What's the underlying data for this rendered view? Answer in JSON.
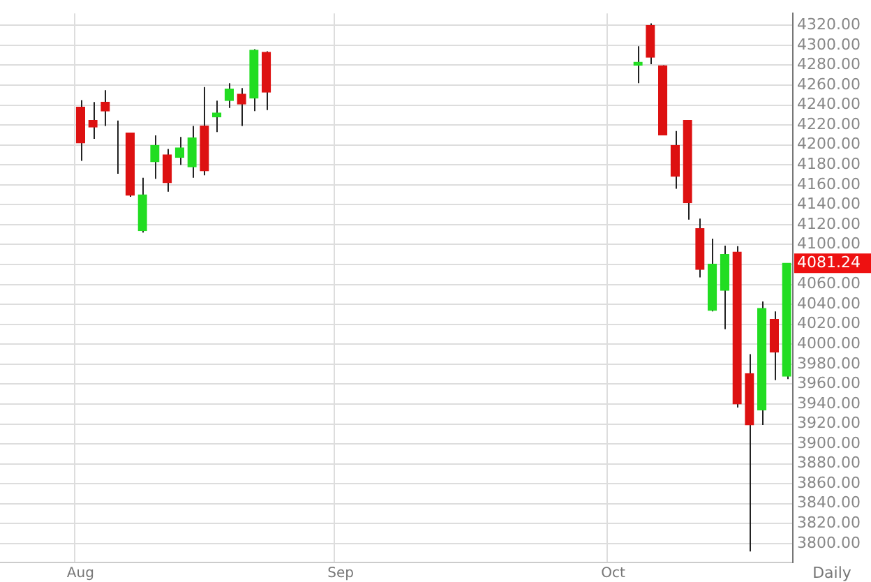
{
  "chart_data": {
    "type": "candlestick",
    "categories": [
      null,
      null,
      null,
      null,
      null,
      null,
      "Aug",
      null,
      null,
      null,
      null,
      null,
      null,
      null,
      null,
      null,
      null,
      null,
      null,
      null,
      null,
      null,
      null,
      null,
      null,
      null,
      null,
      "Sep",
      null,
      null,
      null,
      null,
      null,
      null,
      null,
      null,
      null,
      null,
      null,
      null,
      null,
      null,
      null,
      null,
      null,
      null,
      null,
      null,
      null,
      "Oct",
      null,
      null,
      null,
      null,
      null,
      null,
      null,
      null,
      null,
      null,
      null,
      null,
      null,
      null
    ],
    "ohlc": [
      null,
      null,
      null,
      null,
      null,
      null,
      [
        4238,
        4245,
        4184,
        4202
      ],
      [
        4224.5,
        4243,
        4206,
        4218
      ],
      [
        4243,
        4255,
        4219,
        4234
      ],
      [
        4208,
        4224.5,
        4171,
        4208
      ],
      [
        4212,
        4212,
        4148,
        4149.5
      ],
      [
        4114,
        4167,
        4112,
        4150
      ],
      [
        4183,
        4209.5,
        4166,
        4199.5
      ],
      [
        4190,
        4196,
        4153,
        4162
      ],
      [
        4187.5,
        4208,
        4180,
        4197
      ],
      [
        4178,
        4219,
        4167,
        4207
      ],
      [
        4219,
        4258,
        4169.5,
        4174
      ],
      [
        4228,
        4244.5,
        4213,
        4232
      ],
      [
        4244.5,
        4262,
        4237,
        4256
      ],
      [
        4251,
        4257,
        4219,
        4241
      ],
      [
        4247,
        4296,
        4234,
        4295
      ],
      [
        4293,
        4294,
        4235,
        4253
      ],
      null,
      null,
      null,
      null,
      null,
      null,
      null,
      null,
      null,
      null,
      null,
      null,
      null,
      null,
      null,
      null,
      null,
      null,
      null,
      null,
      null,
      null,
      null,
      null,
      null,
      null,
      null,
      null,
      null,
      [
        4280,
        4299,
        4262,
        4283
      ],
      [
        4320,
        4322,
        4281,
        4288
      ],
      [
        4279.5,
        4280,
        4210,
        4210
      ],
      [
        4199.5,
        4214,
        4156,
        4168.5
      ],
      [
        4224.5,
        4225,
        4125,
        4142
      ],
      [
        4116,
        4126,
        4067,
        4075
      ],
      [
        4034,
        4106,
        4033,
        4080.5
      ],
      [
        4054,
        4099,
        4015,
        4090
      ],
      [
        4092.5,
        4098.5,
        3936.5,
        3940
      ],
      [
        3970.5,
        3990,
        3792,
        3919
      ],
      [
        3934,
        4043,
        3919,
        4036
      ],
      [
        4025,
        4033,
        3964,
        3992
      ],
      [
        3968,
        4081.24,
        3965,
        4081.24
      ]
    ],
    "colors": [
      null,
      null,
      null,
      null,
      null,
      null,
      "#dd1111",
      "#dd1111",
      "#dd1111",
      "#22dd22",
      "#dd1111",
      "#22dd22",
      "#22dd22",
      "#dd1111",
      "#22dd22",
      "#22dd22",
      "#dd1111",
      "#22dd22",
      "#22dd22",
      "#dd1111",
      "#22dd22",
      "#dd1111",
      null,
      null,
      null,
      null,
      null,
      null,
      null,
      null,
      null,
      null,
      null,
      null,
      null,
      null,
      null,
      null,
      null,
      null,
      null,
      null,
      null,
      null,
      null,
      null,
      null,
      null,
      null,
      null,
      null,
      "#22dd22",
      "#dd1111",
      "#dd1111",
      "#dd1111",
      "#dd1111",
      "#dd1111",
      "#22dd22",
      "#22dd22",
      "#dd1111",
      "#dd1111",
      "#22dd22",
      "#dd1111",
      "#22dd22"
    ],
    "ylim": [
      3781,
      4332
    ],
    "yticks": [
      {
        "value": 3800,
        "label": "3800.00"
      },
      {
        "value": 3820,
        "label": "3820.00"
      },
      {
        "value": 3840,
        "label": "3840.00"
      },
      {
        "value": 3860,
        "label": "3860.00"
      },
      {
        "value": 3880,
        "label": "3880.00"
      },
      {
        "value": 3900,
        "label": "3900.00"
      },
      {
        "value": 3920,
        "label": "3920.00"
      },
      {
        "value": 3940,
        "label": "3940.00"
      },
      {
        "value": 3960,
        "label": "3960.00"
      },
      {
        "value": 3980,
        "label": "3980.00"
      },
      {
        "value": 4000,
        "label": "4000.00"
      },
      {
        "value": 4020,
        "label": "4020.00"
      },
      {
        "value": 4040,
        "label": "4040.00"
      },
      {
        "value": 4060,
        "label": "4060.00"
      },
      {
        "value": 4080,
        "label": null
      },
      {
        "value": 4100,
        "label": "4100.00"
      },
      {
        "value": 4120,
        "label": "4120.00"
      },
      {
        "value": 4140,
        "label": "4140.00"
      },
      {
        "value": 4160,
        "label": "4160.00"
      },
      {
        "value": 4180,
        "label": "4180.00"
      },
      {
        "value": 4200,
        "label": "4200.00"
      },
      {
        "value": 4220,
        "label": "4220.00"
      },
      {
        "value": 4240,
        "label": "4240.00"
      },
      {
        "value": 4260,
        "label": "4260.00"
      },
      {
        "value": 4280,
        "label": "4280.00"
      },
      {
        "value": 4300,
        "label": "4300.00"
      },
      {
        "value": 4320,
        "label": "4320.00"
      }
    ],
    "grid": true,
    "legend": false,
    "annotations": [
      "Daily",
      "4081.24"
    ]
  }
}
